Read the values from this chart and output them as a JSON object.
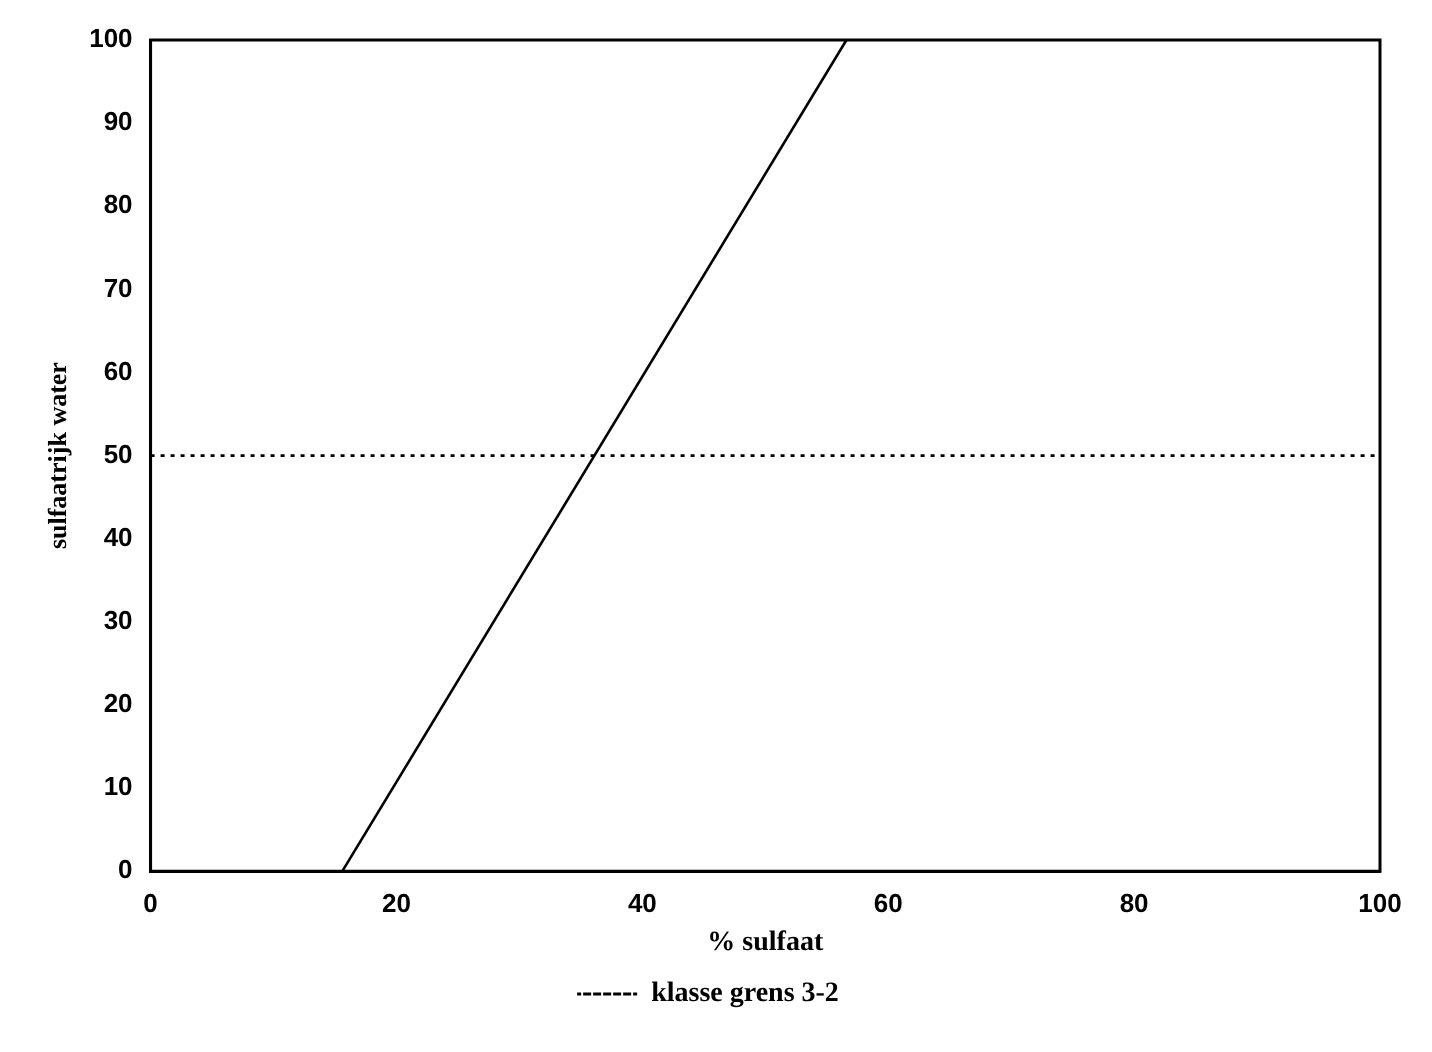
{
  "chart_data": {
    "type": "line",
    "xlabel": "% sulfaat",
    "ylabel": "sulfaatrijk water",
    "series": [
      {
        "x": [
          15.6,
          56.6
        ],
        "values": [
          0,
          100
        ],
        "color": "#000000"
      }
    ],
    "xlim": [
      0,
      100
    ],
    "xticks": [
      0,
      20,
      40,
      60,
      80,
      100
    ],
    "ylim": [
      0,
      100
    ],
    "yticks": [
      0,
      10,
      20,
      30,
      40,
      50,
      60,
      70,
      80,
      90,
      100
    ],
    "ref_lines": [
      {
        "axis": "y",
        "value": 50,
        "label": "klasse grens 3-2",
        "color": "#000000",
        "line_style": "dotted"
      }
    ],
    "legend": "bottom",
    "grid": false,
    "marker": "none",
    "line_style": "solid"
  }
}
